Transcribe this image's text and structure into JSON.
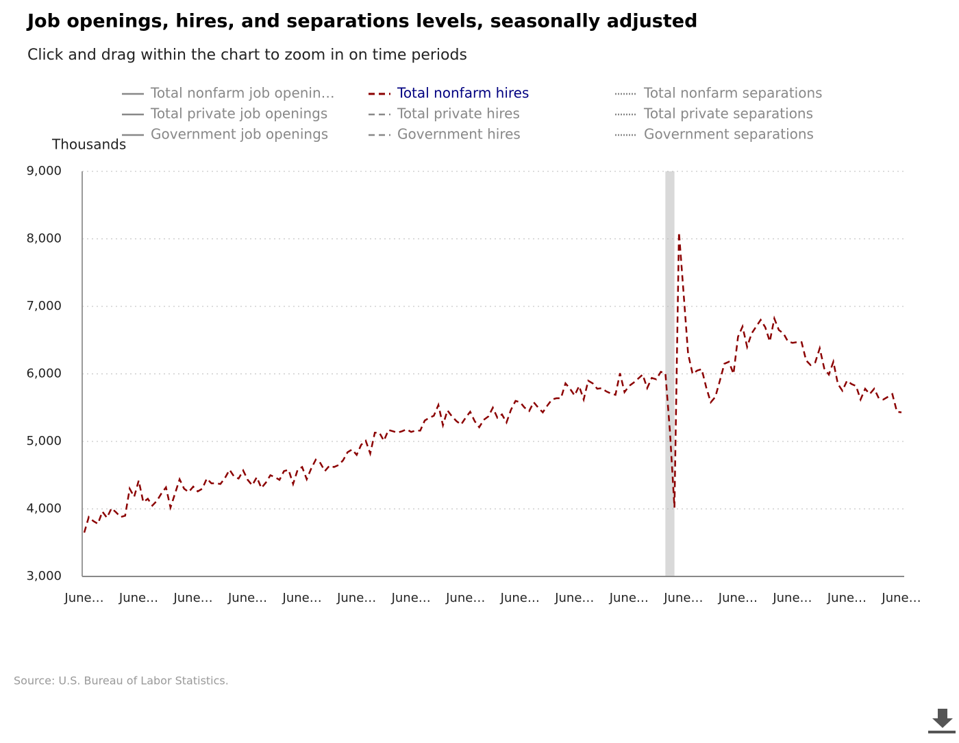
{
  "chart_data": {
    "type": "line",
    "title": "Job openings, hires, and separations levels, seasonally adjusted",
    "subtitle": "Click and drag within the chart to zoom in on time periods",
    "y_axis_title": "Thousands",
    "source": "Source: U.S. Bureau of Labor Statistics.",
    "categories": [
      "June…",
      null,
      null,
      null,
      null,
      null,
      null,
      null,
      null,
      null,
      null,
      null,
      "June…",
      null,
      null,
      null,
      null,
      null,
      null,
      null,
      null,
      null,
      null,
      null,
      "June…",
      null,
      null,
      null,
      null,
      null,
      null,
      null,
      null,
      null,
      null,
      null,
      "June…",
      null,
      null,
      null,
      null,
      null,
      null,
      null,
      null,
      null,
      null,
      null,
      "June…",
      null,
      null,
      null,
      null,
      null,
      null,
      null,
      null,
      null,
      null,
      null,
      "June…",
      null,
      null,
      null,
      null,
      null,
      null,
      null,
      null,
      null,
      null,
      null,
      "June…",
      null,
      null,
      null,
      null,
      null,
      null,
      null,
      null,
      null,
      null,
      null,
      "June…",
      null,
      null,
      null,
      null,
      null,
      null,
      null,
      null,
      null,
      null,
      null,
      "June…",
      null,
      null,
      null,
      null,
      null,
      null,
      null,
      null,
      null,
      null,
      null,
      "June…",
      null,
      null,
      null,
      null,
      null,
      null,
      null,
      null,
      null,
      null,
      null,
      "June…",
      null,
      null,
      null,
      null,
      null,
      null,
      null,
      null,
      null,
      null,
      null,
      "June…",
      null,
      null,
      null,
      null,
      null,
      null,
      null,
      null,
      null,
      null,
      null,
      "June…",
      null,
      null,
      null,
      null,
      null,
      null,
      null,
      null,
      null,
      null,
      null,
      "June…",
      null,
      null,
      null,
      null,
      null,
      null,
      null,
      null,
      null,
      null,
      null,
      "June…",
      null,
      null,
      null,
      null,
      null,
      null,
      null,
      null,
      null,
      null,
      null,
      "June…"
    ],
    "series": [
      {
        "name": "Total nonfarm job openin…",
        "color": "#888888",
        "dash": "solid",
        "visible": false
      },
      {
        "name": "Total private job openings",
        "color": "#888888",
        "dash": "solid",
        "visible": false
      },
      {
        "name": "Government job openings",
        "color": "#888888",
        "dash": "solid",
        "visible": false
      },
      {
        "name": "Total nonfarm hires",
        "color": "#8b0000",
        "dash": "dashed",
        "visible": true,
        "values": [
          3650,
          3880,
          3820,
          3780,
          3960,
          3870,
          4010,
          3950,
          3880,
          3900,
          4300,
          4180,
          4420,
          4100,
          4150,
          4050,
          4120,
          4230,
          4320,
          4020,
          4230,
          4440,
          4300,
          4250,
          4330,
          4260,
          4300,
          4450,
          4380,
          4380,
          4370,
          4460,
          4580,
          4480,
          4450,
          4570,
          4430,
          4350,
          4470,
          4310,
          4390,
          4500,
          4470,
          4430,
          4560,
          4580,
          4370,
          4580,
          4620,
          4440,
          4600,
          4730,
          4680,
          4560,
          4640,
          4620,
          4650,
          4720,
          4840,
          4880,
          4800,
          4950,
          5010,
          4820,
          5130,
          5130,
          5010,
          5170,
          5150,
          5130,
          5150,
          5180,
          5140,
          5160,
          5160,
          5310,
          5350,
          5380,
          5540,
          5240,
          5460,
          5370,
          5300,
          5250,
          5350,
          5440,
          5300,
          5210,
          5320,
          5370,
          5500,
          5350,
          5400,
          5280,
          5470,
          5600,
          5580,
          5500,
          5450,
          5580,
          5500,
          5430,
          5530,
          5620,
          5640,
          5640,
          5860,
          5780,
          5680,
          5820,
          5620,
          5900,
          5860,
          5780,
          5790,
          5740,
          5710,
          5690,
          6010,
          5730,
          5820,
          5870,
          5930,
          5990,
          5790,
          5940,
          5920,
          6030,
          6010,
          5150,
          4020,
          8100,
          7200,
          6300,
          6000,
          6050,
          6070,
          5800,
          5580,
          5660,
          5900,
          6150,
          6180,
          6000,
          6550,
          6700,
          6400,
          6600,
          6700,
          6800,
          6690,
          6480,
          6820,
          6650,
          6600,
          6480,
          6460,
          6470,
          6470,
          6200,
          6130,
          6170,
          6380,
          6080,
          5990,
          6180,
          5850,
          5750,
          5900,
          5850,
          5820,
          5620,
          5780,
          5700,
          5780,
          5640,
          5620,
          5660,
          5700,
          5440,
          5430
        ]
      },
      {
        "name": "Total private hires",
        "color": "#888888",
        "dash": "dashed",
        "visible": false
      },
      {
        "name": "Government hires",
        "color": "#888888",
        "dash": "dashed",
        "visible": false
      },
      {
        "name": "Total nonfarm separations",
        "color": "#888888",
        "dash": "dotted",
        "visible": false
      },
      {
        "name": "Total private separations",
        "color": "#888888",
        "dash": "dotted",
        "visible": false
      },
      {
        "name": "Government separations",
        "color": "#888888",
        "dash": "dotted",
        "visible": false
      }
    ],
    "active_legend_color": "#000080",
    "shading": [
      {
        "start": 128,
        "end": 130,
        "color": "#d9d9d9"
      }
    ],
    "ylim": [
      3000,
      9000
    ],
    "yticks": [
      {
        "value": 3000,
        "label": "3,000"
      },
      {
        "value": 4000,
        "label": "4,000"
      },
      {
        "value": 5000,
        "label": "5,000"
      },
      {
        "value": 6000,
        "label": "6,000"
      },
      {
        "value": 7000,
        "label": "7,000"
      },
      {
        "value": 8000,
        "label": "8,000"
      },
      {
        "value": 9000,
        "label": "9,000"
      }
    ],
    "grid": true
  }
}
